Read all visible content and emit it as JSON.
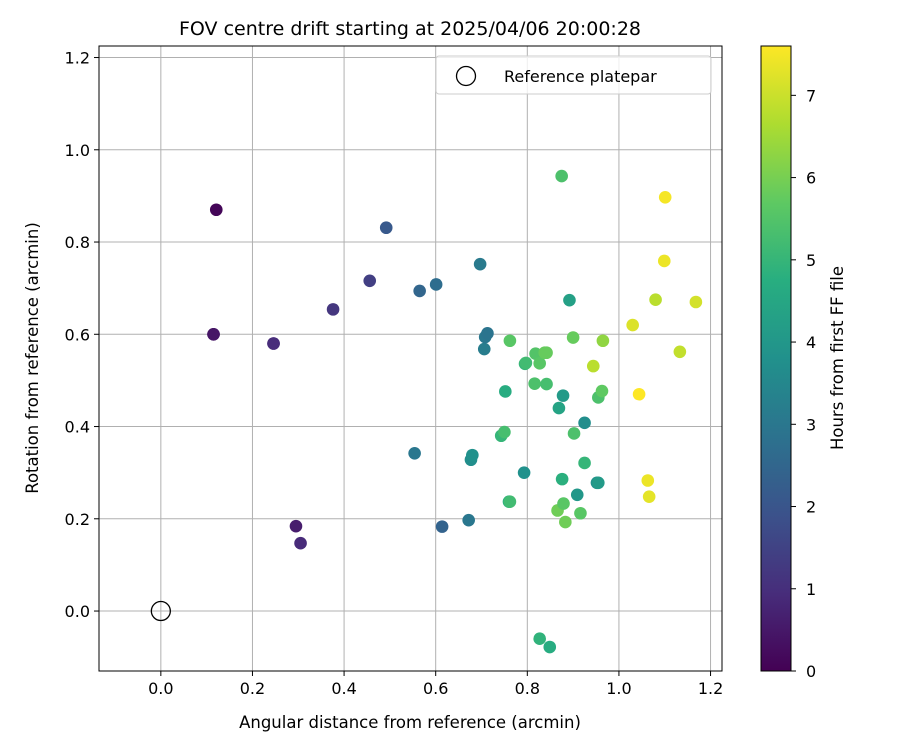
{
  "chart_data": {
    "type": "scatter",
    "title": "FOV centre drift starting at 2025/04/06 20:00:28",
    "xlabel": "Angular distance from reference (arcmin)",
    "ylabel": "Rotation from reference (arcmin)",
    "xlim": [
      -0.135,
      1.225
    ],
    "ylim": [
      -0.13,
      1.225
    ],
    "xticks": [
      0.0,
      0.2,
      0.4,
      0.6,
      0.8,
      1.0,
      1.2
    ],
    "yticks": [
      0.0,
      0.2,
      0.4,
      0.6,
      0.8,
      1.0,
      1.2
    ],
    "grid": true,
    "legend": {
      "placement": "top-right",
      "entries": [
        "Reference platepar"
      ]
    },
    "reference_point": {
      "x": 0.0,
      "y": 0.0,
      "label": "Reference platepar",
      "marker": "open-circle"
    },
    "colorbar": {
      "label": "Hours from first FF file",
      "colormap": "viridis",
      "range": [
        0,
        7.6
      ],
      "ticks": [
        0,
        1,
        2,
        3,
        4,
        5,
        6,
        7
      ]
    },
    "points": [
      {
        "x": 0.121,
        "y": 0.87,
        "h": 0.1
      },
      {
        "x": 0.115,
        "y": 0.6,
        "h": 0.4
      },
      {
        "x": 0.115,
        "y": 0.6,
        "h": 0.45
      },
      {
        "x": 0.246,
        "y": 0.58,
        "h": 0.9
      },
      {
        "x": 0.246,
        "y": 0.58,
        "h": 0.95
      },
      {
        "x": 0.295,
        "y": 0.184,
        "h": 0.6
      },
      {
        "x": 0.305,
        "y": 0.147,
        "h": 0.9
      },
      {
        "x": 0.376,
        "y": 0.654,
        "h": 1.2
      },
      {
        "x": 0.456,
        "y": 0.716,
        "h": 1.4
      },
      {
        "x": 0.492,
        "y": 0.831,
        "h": 2.1
      },
      {
        "x": 0.565,
        "y": 0.694,
        "h": 2.5
      },
      {
        "x": 0.601,
        "y": 0.708,
        "h": 2.7
      },
      {
        "x": 0.554,
        "y": 0.342,
        "h": 3.0
      },
      {
        "x": 0.614,
        "y": 0.183,
        "h": 2.4
      },
      {
        "x": 0.672,
        "y": 0.197,
        "h": 3.0
      },
      {
        "x": 0.677,
        "y": 0.328,
        "h": 3.7
      },
      {
        "x": 0.68,
        "y": 0.338,
        "h": 3.8
      },
      {
        "x": 0.697,
        "y": 0.752,
        "h": 3.1
      },
      {
        "x": 0.706,
        "y": 0.568,
        "h": 3.2
      },
      {
        "x": 0.708,
        "y": 0.594,
        "h": 3.0
      },
      {
        "x": 0.713,
        "y": 0.602,
        "h": 2.9
      },
      {
        "x": 0.743,
        "y": 0.38,
        "h": 5.0
      },
      {
        "x": 0.75,
        "y": 0.388,
        "h": 5.3
      },
      {
        "x": 0.752,
        "y": 0.476,
        "h": 4.7
      },
      {
        "x": 0.76,
        "y": 0.237,
        "h": 4.8
      },
      {
        "x": 0.762,
        "y": 0.237,
        "h": 5.2
      },
      {
        "x": 0.762,
        "y": 0.586,
        "h": 5.6
      },
      {
        "x": 0.793,
        "y": 0.3,
        "h": 3.8
      },
      {
        "x": 0.795,
        "y": 0.536,
        "h": 5.0
      },
      {
        "x": 0.797,
        "y": 0.538,
        "h": 5.2
      },
      {
        "x": 0.816,
        "y": 0.493,
        "h": 5.4
      },
      {
        "x": 0.818,
        "y": 0.558,
        "h": 5.5
      },
      {
        "x": 0.827,
        "y": 0.537,
        "h": 5.6
      },
      {
        "x": 0.827,
        "y": -0.06,
        "h": 4.9
      },
      {
        "x": 0.838,
        "y": 0.56,
        "h": 5.8
      },
      {
        "x": 0.842,
        "y": 0.56,
        "h": 5.8
      },
      {
        "x": 0.842,
        "y": 0.492,
        "h": 5.3
      },
      {
        "x": 0.849,
        "y": -0.078,
        "h": 4.7
      },
      {
        "x": 0.866,
        "y": 0.218,
        "h": 5.9
      },
      {
        "x": 0.869,
        "y": 0.44,
        "h": 4.4
      },
      {
        "x": 0.875,
        "y": 0.943,
        "h": 5.4
      },
      {
        "x": 0.876,
        "y": 0.286,
        "h": 4.8
      },
      {
        "x": 0.878,
        "y": 0.467,
        "h": 4.1
      },
      {
        "x": 0.879,
        "y": 0.233,
        "h": 5.6
      },
      {
        "x": 0.883,
        "y": 0.193,
        "h": 5.9
      },
      {
        "x": 0.892,
        "y": 0.674,
        "h": 4.3
      },
      {
        "x": 0.9,
        "y": 0.593,
        "h": 5.8
      },
      {
        "x": 0.902,
        "y": 0.385,
        "h": 5.4
      },
      {
        "x": 0.909,
        "y": 0.252,
        "h": 4.0
      },
      {
        "x": 0.916,
        "y": 0.212,
        "h": 5.6
      },
      {
        "x": 0.925,
        "y": 0.408,
        "h": 3.7
      },
      {
        "x": 0.925,
        "y": 0.321,
        "h": 5.0
      },
      {
        "x": 0.944,
        "y": 0.531,
        "h": 6.8
      },
      {
        "x": 0.952,
        "y": 0.278,
        "h": 3.8
      },
      {
        "x": 0.955,
        "y": 0.278,
        "h": 4.1
      },
      {
        "x": 0.955,
        "y": 0.463,
        "h": 5.4
      },
      {
        "x": 0.963,
        "y": 0.477,
        "h": 5.7
      },
      {
        "x": 0.965,
        "y": 0.586,
        "h": 6.3
      },
      {
        "x": 1.03,
        "y": 0.62,
        "h": 7.2
      },
      {
        "x": 1.044,
        "y": 0.47,
        "h": 7.6
      },
      {
        "x": 1.063,
        "y": 0.283,
        "h": 7.4
      },
      {
        "x": 1.066,
        "y": 0.248,
        "h": 7.3
      },
      {
        "x": 1.08,
        "y": 0.675,
        "h": 6.8
      },
      {
        "x": 1.099,
        "y": 0.759,
        "h": 7.4
      },
      {
        "x": 1.101,
        "y": 0.897,
        "h": 7.5
      },
      {
        "x": 1.133,
        "y": 0.562,
        "h": 6.9
      },
      {
        "x": 1.168,
        "y": 0.67,
        "h": 7.1
      }
    ]
  }
}
